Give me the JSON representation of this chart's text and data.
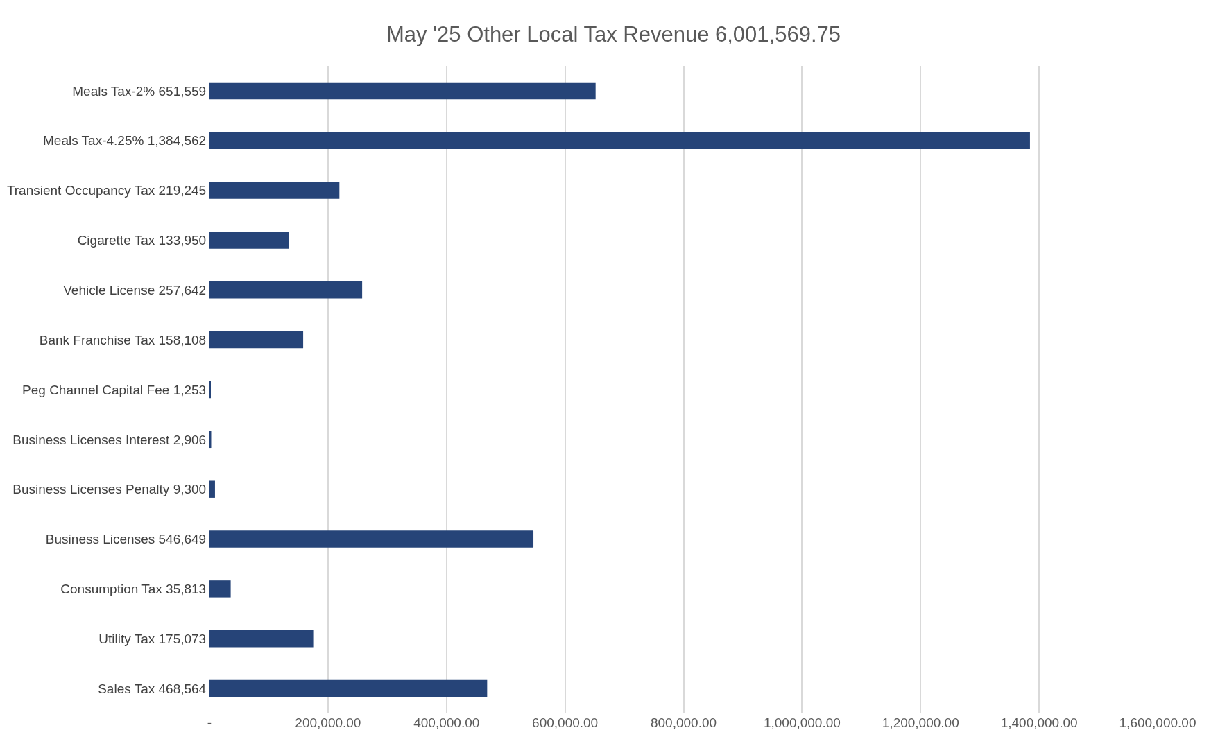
{
  "chart_data": {
    "type": "bar",
    "orientation": "horizontal",
    "title": "May '25 Other Local Tax Revenue 6,001,569.75",
    "categories": [
      "Meals Tax-2% 651,559",
      "Meals Tax-4.25% 1,384,562",
      "Transient Occupancy Tax 219,245",
      "Cigarette Tax 133,950",
      "Vehicle License 257,642",
      "Bank Franchise Tax 158,108",
      "Peg Channel Capital Fee 1,253",
      "Business Licenses Interest 2,906",
      "Business Licenses Penalty 9,300",
      "Business Licenses 546,649",
      "Consumption Tax 35,813",
      "Utility Tax 175,073",
      "Sales Tax 468,564"
    ],
    "values": [
      651559,
      1384562,
      219245,
      133950,
      257642,
      158108,
      1253,
      2906,
      9300,
      546649,
      35813,
      175073,
      468564
    ],
    "color": "#264478",
    "xlim": [
      0,
      1600000
    ],
    "xticks": [
      {
        "value": 0,
        "label": "-"
      },
      {
        "value": 200000,
        "label": "200,000.00"
      },
      {
        "value": 400000,
        "label": "400,000.00"
      },
      {
        "value": 600000,
        "label": "600,000.00"
      },
      {
        "value": 800000,
        "label": "800,000.00"
      },
      {
        "value": 1000000,
        "label": "1,000,000.00"
      },
      {
        "value": 1200000,
        "label": "1,200,000.00"
      },
      {
        "value": 1400000,
        "label": "1,400,000.00"
      },
      {
        "value": 1600000,
        "label": "1,600,000.00"
      }
    ],
    "grid": "x"
  }
}
